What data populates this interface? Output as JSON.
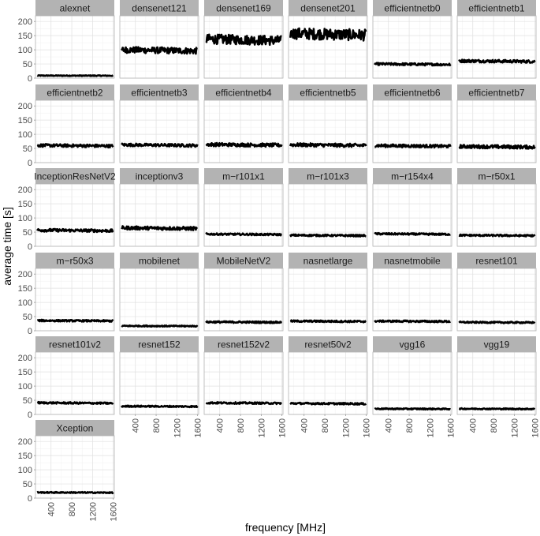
{
  "chart_data": {
    "type": "line",
    "layout": "facet-grid",
    "xlabel": "frequency [MHz]",
    "ylabel": "average time [s]",
    "xlim": [
      100,
      1620
    ],
    "ylim": [
      0,
      220
    ],
    "x_ticks": [
      400,
      800,
      1200,
      1600
    ],
    "y_ticks": [
      0,
      50,
      100,
      150,
      200
    ],
    "grid": true,
    "colors": {
      "strip": "#b3b3b3",
      "panel_border": "#b3b3b3",
      "grid_major": "#e0e0e0",
      "grid_minor": "#f0f0f0",
      "line": "#000000"
    },
    "panels": [
      {
        "name": "alexnet",
        "mean": 9,
        "jitter": 1.5
      },
      {
        "name": "densenet121",
        "mean": 100,
        "jitter": 11
      },
      {
        "name": "densenet169",
        "mean": 138,
        "jitter": 17
      },
      {
        "name": "densenet201",
        "mean": 158,
        "jitter": 20
      },
      {
        "name": "efficientnetb0",
        "mean": 50,
        "jitter": 4
      },
      {
        "name": "efficientnetb1",
        "mean": 61,
        "jitter": 5
      },
      {
        "name": "efficientnetb2",
        "mean": 61,
        "jitter": 5
      },
      {
        "name": "efficientnetb3",
        "mean": 63,
        "jitter": 5
      },
      {
        "name": "efficientnetb4",
        "mean": 64,
        "jitter": 6
      },
      {
        "name": "efficientnetb5",
        "mean": 63,
        "jitter": 6
      },
      {
        "name": "efficientnetb6",
        "mean": 60,
        "jitter": 5
      },
      {
        "name": "efficientnetb7",
        "mean": 57,
        "jitter": 6
      },
      {
        "name": "InceptionResNetV2",
        "mean": 57,
        "jitter": 5
      },
      {
        "name": "inceptionv3",
        "mean": 65,
        "jitter": 6
      },
      {
        "name": "m−r101x1",
        "mean": 43,
        "jitter": 3
      },
      {
        "name": "m−r101x3",
        "mean": 39,
        "jitter": 3
      },
      {
        "name": "m−r154x4",
        "mean": 44,
        "jitter": 3
      },
      {
        "name": "m−r50x1",
        "mean": 39,
        "jitter": 3
      },
      {
        "name": "m−r50x3",
        "mean": 36,
        "jitter": 3
      },
      {
        "name": "mobilenet",
        "mean": 17,
        "jitter": 2
      },
      {
        "name": "MobileNetV2",
        "mean": 31,
        "jitter": 3
      },
      {
        "name": "nasnetlarge",
        "mean": 34,
        "jitter": 3
      },
      {
        "name": "nasnetmobile",
        "mean": 34,
        "jitter": 3
      },
      {
        "name": "resnet101",
        "mean": 30,
        "jitter": 2.5
      },
      {
        "name": "resnet101v2",
        "mean": 41,
        "jitter": 3
      },
      {
        "name": "resnet152",
        "mean": 29,
        "jitter": 2.5
      },
      {
        "name": "resnet152v2",
        "mean": 41,
        "jitter": 3
      },
      {
        "name": "resnet50v2",
        "mean": 39,
        "jitter": 3
      },
      {
        "name": "vgg16",
        "mean": 20,
        "jitter": 2
      },
      {
        "name": "vgg19",
        "mean": 20,
        "jitter": 2
      },
      {
        "name": "Xception",
        "mean": 20,
        "jitter": 2
      }
    ]
  }
}
